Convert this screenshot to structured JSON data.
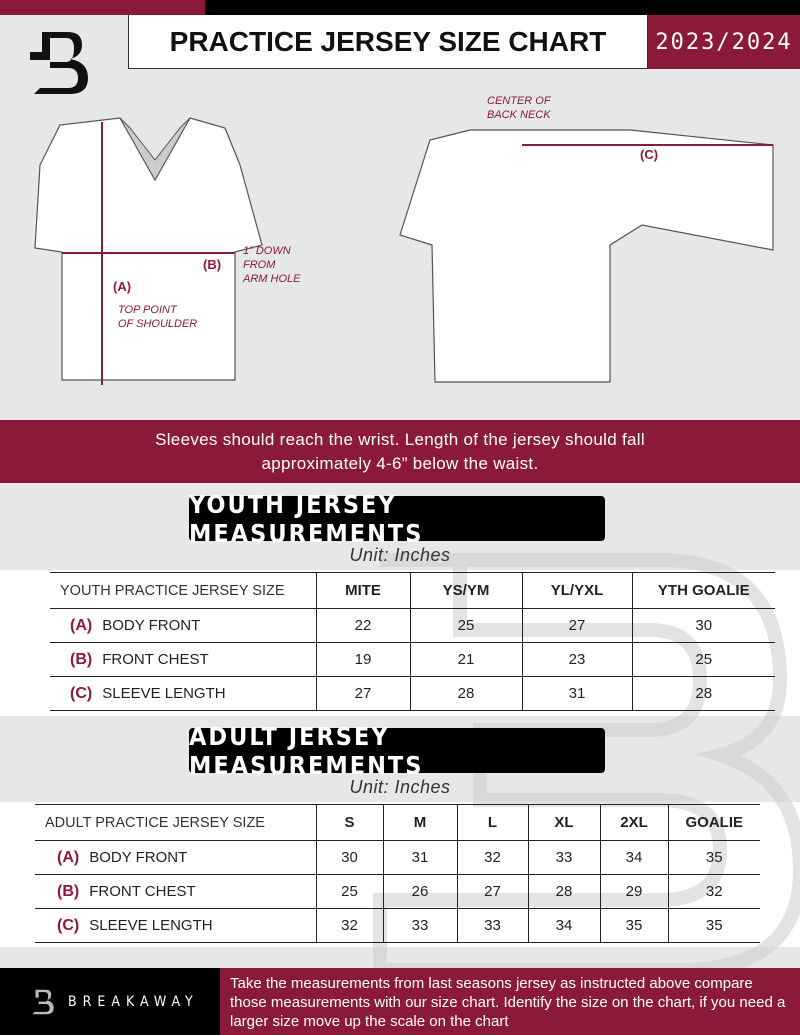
{
  "header": {
    "title": "PRACTICE JERSEY SIZE CHART",
    "season": "2023/2024",
    "logo_icon": "breakaway-b-logo"
  },
  "diagram": {
    "front_labels": {
      "a": "(A)",
      "b": "(B)",
      "top_point": "TOP POINT\nOF SHOULDER",
      "down": "1” DOWN\nFROM\nARM HOLE"
    },
    "back_labels": {
      "c": "(C)",
      "center": "CENTER OF\nBACK NECK"
    }
  },
  "instructions": {
    "line1": "Sleeves should reach the wrist. Length of the jersey should fall",
    "line2": "approximately 4-6” below the waist."
  },
  "youth": {
    "title": "YOUTH JERSEY MEASUREMENTS",
    "unit": "Unit: Inches",
    "header": [
      "YOUTH PRACTICE JERSEY SIZE",
      "MITE",
      "YS/YM",
      "YL/YXL",
      "YTH GOALIE"
    ],
    "rows": [
      {
        "letter": "(A)",
        "label": "BODY FRONT",
        "values": [
          "22",
          "25",
          "27",
          "30"
        ]
      },
      {
        "letter": "(B)",
        "label": "FRONT CHEST",
        "values": [
          "19",
          "21",
          "23",
          "25"
        ]
      },
      {
        "letter": "(C)",
        "label": "SLEEVE LENGTH",
        "values": [
          "27",
          "28",
          "31",
          "28"
        ]
      }
    ]
  },
  "adult": {
    "title": "ADULT JERSEY MEASUREMENTS",
    "unit": "Unit: Inches",
    "header": [
      "ADULT PRACTICE JERSEY SIZE",
      "S",
      "M",
      "L",
      "XL",
      "2XL",
      "GOALIE"
    ],
    "rows": [
      {
        "letter": "(A)",
        "label": "BODY FRONT",
        "values": [
          "30",
          "31",
          "32",
          "33",
          "34",
          "35"
        ]
      },
      {
        "letter": "(B)",
        "label": "FRONT CHEST",
        "values": [
          "25",
          "26",
          "27",
          "28",
          "29",
          "32"
        ]
      },
      {
        "letter": "(C)",
        "label": "SLEEVE LENGTH",
        "values": [
          "32",
          "33",
          "33",
          "34",
          "35",
          "35"
        ]
      }
    ]
  },
  "footer": {
    "brand": "BREAKAWAY",
    "text": "Take the measurements from last seasons jersey as instructed above compare those measurements  with our size chart. Identify the size on the chart, if you need a larger size move up the scale on the chart"
  },
  "colors": {
    "accent": "#8b1a38",
    "background": "#e6e7e8"
  }
}
